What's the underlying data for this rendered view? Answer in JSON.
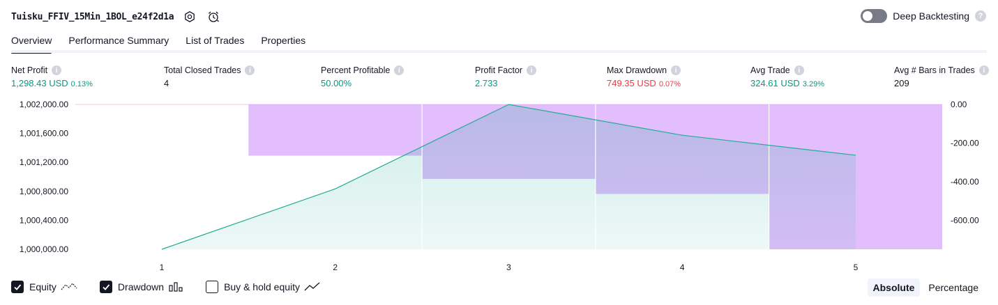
{
  "header": {
    "strategy_name": "Tuisku_FFIV_15Min_1BOL_e24f2d1a",
    "deep_backtesting_label": "Deep Backtesting",
    "deep_backtesting_on": false
  },
  "tabs": [
    {
      "label": "Overview",
      "active": true
    },
    {
      "label": "Performance Summary",
      "active": false
    },
    {
      "label": "List of Trades",
      "active": false
    },
    {
      "label": "Properties",
      "active": false
    }
  ],
  "metrics": [
    {
      "label": "Net Profit",
      "value": "1,298.43 USD",
      "pct": "0.13%",
      "tone": "green"
    },
    {
      "label": "Total Closed Trades",
      "value": "4",
      "pct": "",
      "tone": "plain"
    },
    {
      "label": "Percent Profitable",
      "value": "50.00%",
      "pct": "",
      "tone": "green"
    },
    {
      "label": "Profit Factor",
      "value": "2.733",
      "pct": "",
      "tone": "green"
    },
    {
      "label": "Max Drawdown",
      "value": "749.35 USD",
      "pct": "0.07%",
      "tone": "red"
    },
    {
      "label": "Avg Trade",
      "value": "324.61 USD",
      "pct": "3.29%",
      "tone": "green"
    },
    {
      "label": "Avg # Bars in Trades",
      "value": "209",
      "pct": "",
      "tone": "plain"
    }
  ],
  "chart_data": {
    "type": "line",
    "x": [
      1,
      2,
      3,
      4,
      5
    ],
    "left_axis_ticks": [
      "1,002,000.00",
      "1,001,600.00",
      "1,001,200.00",
      "1,000,800.00",
      "1,000,400.00",
      "1,000,000.00"
    ],
    "left_ylim": [
      1000000,
      1002000
    ],
    "right_axis_ticks": [
      "0.00",
      "-200.00",
      "-400.00",
      "-600.00"
    ],
    "right_ylim": [
      -749.35,
      0
    ],
    "series": [
      {
        "name": "Equity",
        "type": "line_area",
        "color": "#22ab94",
        "values": [
          1000000,
          1000835,
          1002027,
          1001575,
          1001298.43
        ]
      },
      {
        "name": "Drawdown",
        "type": "bar",
        "color": "#ce93fb",
        "values": [
          0,
          -265,
          -385,
          -463,
          -749.35
        ]
      }
    ],
    "grid": "vertical"
  },
  "legend": {
    "equity_label": "Equity",
    "equity_checked": true,
    "drawdown_label": "Drawdown",
    "drawdown_checked": true,
    "buyhold_label": "Buy & hold equity",
    "buyhold_checked": false
  },
  "mode": {
    "absolute_label": "Absolute",
    "percentage_label": "Percentage",
    "active": "Absolute"
  }
}
